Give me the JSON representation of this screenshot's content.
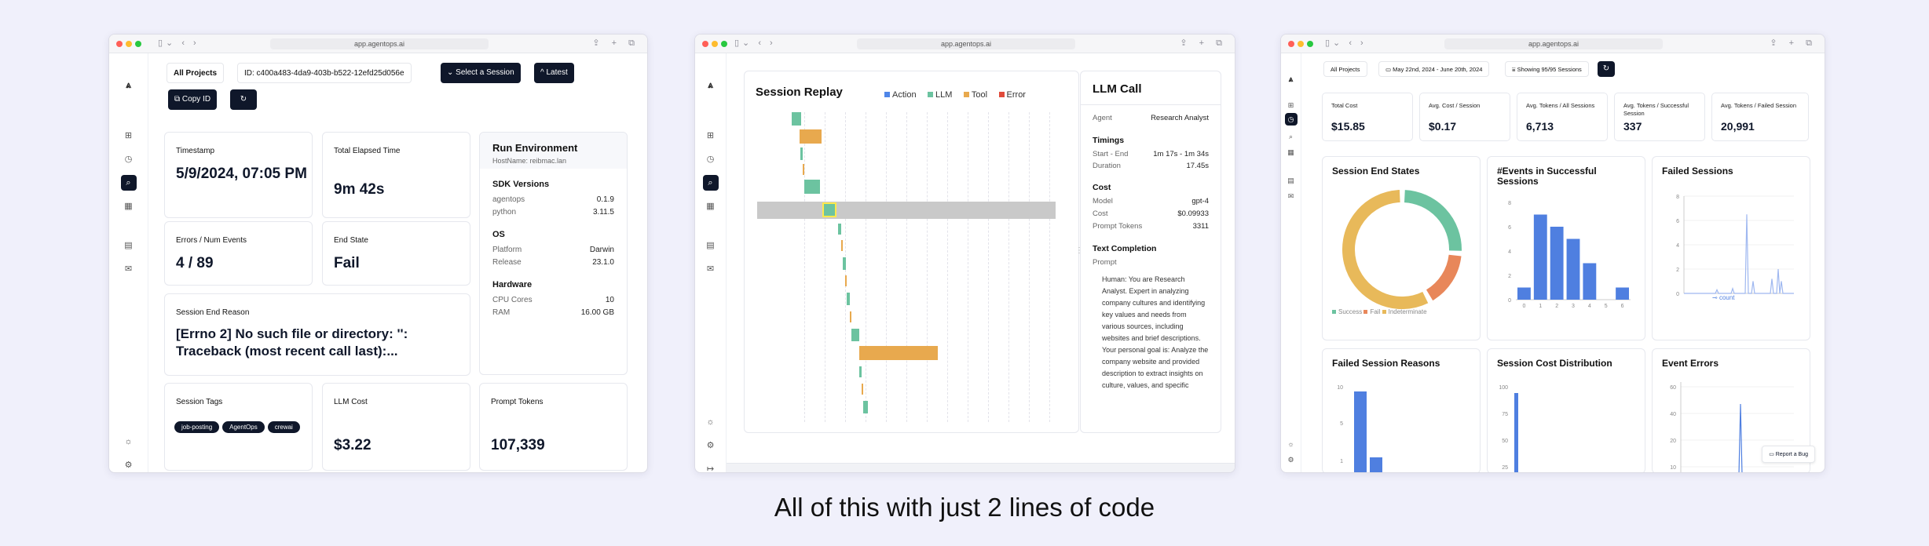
{
  "caption": "All of this with just 2 lines of code",
  "window1": {
    "url": "app.agentops.ai",
    "all_projects": "All Projects",
    "session_id": "ID: c400a483-4da9-403b-b522-12efd25d056e",
    "select_session": "Select a Session",
    "latest": "Latest",
    "copy_id": "Copy ID",
    "timestamp": {
      "label": "Timestamp",
      "value": "5/9/2024, 07:05 PM"
    },
    "elapsed": {
      "label": "Total Elapsed Time",
      "value": "9m 42s"
    },
    "errors": {
      "label": "Errors / Num Events",
      "value": "4 / 89"
    },
    "end_state": {
      "label": "End State",
      "value": "Fail"
    },
    "end_reason": {
      "label": "Session End Reason",
      "value": "[Errno 2] No such file or directory: '': Traceback (most recent call last):..."
    },
    "tags": {
      "label": "Session Tags",
      "items": [
        "job-posting",
        "AgentOps",
        "crewai"
      ]
    },
    "llm_cost": {
      "label": "LLM Cost",
      "value": "$3.22"
    },
    "prompt_tokens": {
      "label": "Prompt Tokens",
      "value": "107,339"
    },
    "run_env": {
      "title": "Run Environment",
      "hostname": "HostName: reibmac.lan",
      "sdk_title": "SDK Versions",
      "sdk": [
        {
          "k": "agentops",
          "v": "0.1.9"
        },
        {
          "k": "python",
          "v": "3.11.5"
        }
      ],
      "os_title": "OS",
      "os": [
        {
          "k": "Platform",
          "v": "Darwin"
        },
        {
          "k": "Release",
          "v": "23.1.0"
        }
      ],
      "hw_title": "Hardware",
      "hw": [
        {
          "k": "CPU Cores",
          "v": "10"
        },
        {
          "k": "RAM",
          "v": "16.00 GB"
        }
      ]
    }
  },
  "window2": {
    "url": "app.agentops.ai",
    "replay_title": "Session Replay",
    "legend": [
      {
        "name": "Action",
        "color": "#4f86e8"
      },
      {
        "name": "LLM",
        "color": "#6cc3a0"
      },
      {
        "name": "Tool",
        "color": "#e8a94e"
      },
      {
        "name": "Error",
        "color": "#e04a3a"
      }
    ],
    "llm_call": {
      "title": "LLM Call",
      "agent_label": "Agent",
      "agent": "Research Analyst",
      "timings_title": "Timings",
      "start_end_label": "Start - End",
      "start_end": "1m 17s - 1m 34s",
      "duration_label": "Duration",
      "duration": "17.45s",
      "cost_title": "Cost",
      "model_label": "Model",
      "model": "gpt-4",
      "cost_label": "Cost",
      "cost": "$0.09933",
      "prompt_tokens_label": "Prompt Tokens",
      "prompt_tokens": "3311",
      "completion_title": "Text Completion",
      "prompt_label": "Prompt",
      "prompt_text": "Human: You are Research Analyst. Expert in analyzing company cultures and identifying key values and needs from various sources, including websites and brief descriptions. Your personal goal is: Analyze the company website and provided description to extract insights on culture, values, and specific"
    }
  },
  "window3": {
    "url": "app.agentops.ai",
    "all_projects": "All Projects",
    "date_range": "May 22nd, 2024 - June 20th, 2024",
    "showing": "Showing 95/95 Sessions",
    "kpis": [
      {
        "label": "Total Cost",
        "value": "$15.85"
      },
      {
        "label": "Avg. Cost / Session",
        "value": "$0.17"
      },
      {
        "label": "Avg. Tokens / All Sessions",
        "value": "6,713"
      },
      {
        "label": "Avg. Tokens / Successful Session",
        "value": "337"
      },
      {
        "label": "Avg. Tokens / Failed Session",
        "value": "20,991"
      }
    ],
    "charts": {
      "end_states": "Session End States",
      "events_success": "#Events in Successful Sessions",
      "failed_sessions": "Failed Sessions",
      "failed_reasons": "Failed Session Reasons",
      "cost_dist": "Session Cost Distribution",
      "event_errors": "Event Errors"
    },
    "donut_legend": [
      {
        "name": "Success",
        "color": "#6cc3a0"
      },
      {
        "name": "Fail",
        "color": "#e8875a"
      },
      {
        "name": "Indeterminate",
        "color": "#e8b95a"
      }
    ],
    "count_label": "count",
    "report_bug": "Report a Bug"
  },
  "chart_data": [
    {
      "type": "pie",
      "title": "Session End States",
      "categories": [
        "Success",
        "Fail",
        "Indeterminate"
      ],
      "values": [
        26,
        16,
        58
      ]
    },
    {
      "type": "bar",
      "title": "#Events in Successful Sessions",
      "categories": [
        "0",
        "1",
        "2",
        "3",
        "4",
        "5",
        "6"
      ],
      "values": [
        1,
        7,
        6,
        5,
        3,
        0,
        1
      ],
      "ylim": [
        0,
        8
      ]
    },
    {
      "type": "line",
      "title": "Failed Sessions",
      "ylim": [
        0,
        8
      ],
      "yticks": [
        "0",
        "2",
        "4",
        "6",
        "8"
      ],
      "series": [
        {
          "name": "count"
        }
      ]
    },
    {
      "type": "bar",
      "title": "Failed Session Reasons",
      "yticks": [
        "10",
        "5",
        "1"
      ]
    },
    {
      "type": "bar",
      "title": "Session Cost Distribution",
      "yticks": [
        "100",
        "75",
        "50",
        "25"
      ]
    },
    {
      "type": "line",
      "title": "Event Errors",
      "yticks": [
        "60",
        "40",
        "20",
        "10"
      ]
    }
  ]
}
